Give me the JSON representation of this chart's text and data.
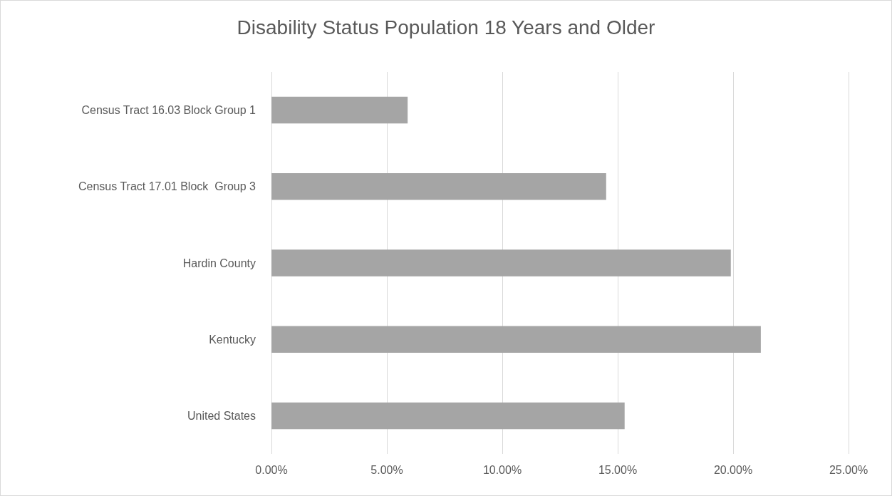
{
  "chart_data": {
    "type": "bar",
    "orientation": "horizontal",
    "title": "Disability Status Population 18 Years and Older",
    "categories": [
      "Census Tract 16.03 Block Group 1",
      "Census Tract 17.01 Block  Group 3",
      "Hardin County",
      "Kentucky",
      "United States"
    ],
    "values": [
      5.9,
      14.5,
      19.9,
      21.2,
      15.3
    ],
    "color": "#a5a5a5",
    "xlim": [
      0,
      25
    ],
    "xticks": [
      {
        "value": 0,
        "label": "0.00%"
      },
      {
        "value": 5,
        "label": "5.00%"
      },
      {
        "value": 10,
        "label": "10.00%"
      },
      {
        "value": 15,
        "label": "15.00%"
      },
      {
        "value": 20,
        "label": "20.00%"
      },
      {
        "value": 25,
        "label": "25.00%"
      }
    ],
    "grid": "x"
  }
}
